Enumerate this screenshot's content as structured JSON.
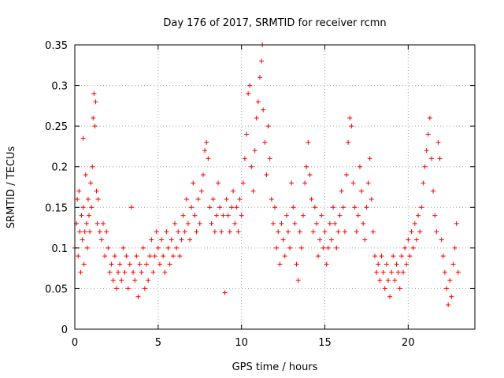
{
  "chart_data": {
    "type": "scatter",
    "title": "Day 176 of 2017, SRMTID for receiver rcmn",
    "xlabel": "GPS time / hours",
    "ylabel": "SRMTID / TECUs",
    "xlim": [
      0,
      24
    ],
    "ylim": [
      0,
      0.35
    ],
    "x_ticks": [
      0,
      5,
      10,
      15,
      20
    ],
    "x_tick_labels": [
      "0",
      "5",
      "10",
      "15",
      "20"
    ],
    "y_ticks": [
      0,
      0.05,
      0.1,
      0.15,
      0.2,
      0.25,
      0.3,
      0.35
    ],
    "y_tick_labels": [
      "0",
      "0.05",
      "0.1",
      "0.15",
      "0.2",
      "0.25",
      "0.3",
      "0.35"
    ],
    "grid": true,
    "marker": "+",
    "color": "#ff0000",
    "series": [
      {
        "name": "SRMTID",
        "points": [
          [
            0.0,
            0.1
          ],
          [
            0.1,
            0.13
          ],
          [
            0.15,
            0.16
          ],
          [
            0.2,
            0.09
          ],
          [
            0.25,
            0.17
          ],
          [
            0.3,
            0.12
          ],
          [
            0.35,
            0.07
          ],
          [
            0.4,
            0.14
          ],
          [
            0.45,
            0.11
          ],
          [
            0.5,
            0.15
          ],
          [
            0.5,
            0.235
          ],
          [
            0.55,
            0.08
          ],
          [
            0.6,
            0.12
          ],
          [
            0.65,
            0.19
          ],
          [
            0.7,
            0.13
          ],
          [
            0.75,
            0.1
          ],
          [
            0.8,
            0.16
          ],
          [
            0.85,
            0.14
          ],
          [
            0.9,
            0.12
          ],
          [
            0.95,
            0.18
          ],
          [
            1.0,
            0.15
          ],
          [
            1.05,
            0.2
          ],
          [
            1.1,
            0.26
          ],
          [
            1.15,
            0.29
          ],
          [
            1.2,
            0.25
          ],
          [
            1.25,
            0.28
          ],
          [
            1.3,
            0.17
          ],
          [
            1.35,
            0.13
          ],
          [
            1.4,
            0.16
          ],
          [
            1.5,
            0.12
          ],
          [
            1.6,
            0.11
          ],
          [
            1.7,
            0.13
          ],
          [
            1.8,
            0.09
          ],
          [
            1.9,
            0.12
          ],
          [
            2.0,
            0.1
          ],
          [
            2.1,
            0.07
          ],
          [
            2.2,
            0.08
          ],
          [
            2.3,
            0.06
          ],
          [
            2.4,
            0.09
          ],
          [
            2.5,
            0.05
          ],
          [
            2.6,
            0.07
          ],
          [
            2.7,
            0.08
          ],
          [
            2.8,
            0.06
          ],
          [
            2.9,
            0.1
          ],
          [
            3.0,
            0.07
          ],
          [
            3.1,
            0.09
          ],
          [
            3.2,
            0.05
          ],
          [
            3.3,
            0.08
          ],
          [
            3.4,
            0.15
          ],
          [
            3.5,
            0.07
          ],
          [
            3.6,
            0.06
          ],
          [
            3.7,
            0.09
          ],
          [
            3.8,
            0.04
          ],
          [
            3.9,
            0.08
          ],
          [
            4.0,
            0.07
          ],
          [
            4.1,
            0.1
          ],
          [
            4.2,
            0.05
          ],
          [
            4.3,
            0.08
          ],
          [
            4.4,
            0.06
          ],
          [
            4.5,
            0.09
          ],
          [
            4.6,
            0.11
          ],
          [
            4.7,
            0.07
          ],
          [
            4.8,
            0.09
          ],
          [
            4.9,
            0.12
          ],
          [
            5.0,
            0.1
          ],
          [
            5.1,
            0.08
          ],
          [
            5.2,
            0.11
          ],
          [
            5.3,
            0.09
          ],
          [
            5.4,
            0.07
          ],
          [
            5.5,
            0.12
          ],
          [
            5.6,
            0.1
          ],
          [
            5.7,
            0.08
          ],
          [
            5.8,
            0.11
          ],
          [
            5.9,
            0.09
          ],
          [
            6.0,
            0.13
          ],
          [
            6.1,
            0.1
          ],
          [
            6.2,
            0.12
          ],
          [
            6.3,
            0.09
          ],
          [
            6.4,
            0.11
          ],
          [
            6.5,
            0.14
          ],
          [
            6.6,
            0.12
          ],
          [
            6.7,
            0.16
          ],
          [
            6.8,
            0.13
          ],
          [
            6.9,
            0.11
          ],
          [
            7.0,
            0.15
          ],
          [
            7.1,
            0.18
          ],
          [
            7.2,
            0.14
          ],
          [
            7.3,
            0.12
          ],
          [
            7.4,
            0.16
          ],
          [
            7.5,
            0.13
          ],
          [
            7.6,
            0.17
          ],
          [
            7.7,
            0.19
          ],
          [
            7.8,
            0.22
          ],
          [
            7.9,
            0.23
          ],
          [
            8.0,
            0.21
          ],
          [
            8.1,
            0.15
          ],
          [
            8.2,
            0.13
          ],
          [
            8.3,
            0.16
          ],
          [
            8.4,
            0.12
          ],
          [
            8.5,
            0.14
          ],
          [
            8.6,
            0.18
          ],
          [
            8.7,
            0.15
          ],
          [
            8.8,
            0.12
          ],
          [
            8.9,
            0.14
          ],
          [
            9.0,
            0.045
          ],
          [
            9.1,
            0.16
          ],
          [
            9.2,
            0.14
          ],
          [
            9.3,
            0.12
          ],
          [
            9.4,
            0.15
          ],
          [
            9.5,
            0.17
          ],
          [
            9.6,
            0.13
          ],
          [
            9.7,
            0.15
          ],
          [
            9.8,
            0.12
          ],
          [
            9.9,
            0.16
          ],
          [
            10.0,
            0.14
          ],
          [
            10.1,
            0.18
          ],
          [
            10.2,
            0.21
          ],
          [
            10.3,
            0.24
          ],
          [
            10.4,
            0.29
          ],
          [
            10.5,
            0.3
          ],
          [
            10.6,
            0.2
          ],
          [
            10.7,
            0.17
          ],
          [
            10.8,
            0.22
          ],
          [
            10.9,
            0.26
          ],
          [
            11.0,
            0.28
          ],
          [
            11.1,
            0.31
          ],
          [
            11.2,
            0.33
          ],
          [
            11.25,
            0.35
          ],
          [
            11.3,
            0.27
          ],
          [
            11.4,
            0.23
          ],
          [
            11.5,
            0.19
          ],
          [
            11.6,
            0.25
          ],
          [
            11.7,
            0.21
          ],
          [
            11.8,
            0.16
          ],
          [
            11.9,
            0.13
          ],
          [
            12.0,
            0.15
          ],
          [
            12.1,
            0.1
          ],
          [
            12.2,
            0.12
          ],
          [
            12.3,
            0.08
          ],
          [
            12.4,
            0.13
          ],
          [
            12.5,
            0.11
          ],
          [
            12.6,
            0.09
          ],
          [
            12.7,
            0.14
          ],
          [
            12.8,
            0.12
          ],
          [
            12.9,
            0.1
          ],
          [
            13.0,
            0.18
          ],
          [
            13.1,
            0.15
          ],
          [
            13.2,
            0.13
          ],
          [
            13.3,
            0.08
          ],
          [
            13.4,
            0.06
          ],
          [
            13.5,
            0.12
          ],
          [
            13.6,
            0.1
          ],
          [
            13.7,
            0.14
          ],
          [
            13.8,
            0.18
          ],
          [
            13.9,
            0.2
          ],
          [
            14.0,
            0.23
          ],
          [
            14.1,
            0.19
          ],
          [
            14.2,
            0.16
          ],
          [
            14.3,
            0.12
          ],
          [
            14.4,
            0.15
          ],
          [
            14.5,
            0.13
          ],
          [
            14.6,
            0.09
          ],
          [
            14.7,
            0.11
          ],
          [
            14.8,
            0.14
          ],
          [
            14.9,
            0.1
          ],
          [
            15.0,
            0.12
          ],
          [
            15.1,
            0.08
          ],
          [
            15.2,
            0.1
          ],
          [
            15.3,
            0.13
          ],
          [
            15.4,
            0.11
          ],
          [
            15.5,
            0.15
          ],
          [
            15.6,
            0.13
          ],
          [
            15.7,
            0.1
          ],
          [
            15.8,
            0.12
          ],
          [
            15.9,
            0.14
          ],
          [
            16.0,
            0.17
          ],
          [
            16.1,
            0.15
          ],
          [
            16.2,
            0.12
          ],
          [
            16.3,
            0.19
          ],
          [
            16.4,
            0.23
          ],
          [
            16.5,
            0.26
          ],
          [
            16.6,
            0.25
          ],
          [
            16.7,
            0.18
          ],
          [
            16.8,
            0.15
          ],
          [
            16.9,
            0.12
          ],
          [
            17.0,
            0.14
          ],
          [
            17.1,
            0.2
          ],
          [
            17.2,
            0.17
          ],
          [
            17.3,
            0.13
          ],
          [
            17.4,
            0.11
          ],
          [
            17.5,
            0.15
          ],
          [
            17.6,
            0.18
          ],
          [
            17.7,
            0.21
          ],
          [
            17.8,
            0.16
          ],
          [
            17.9,
            0.12
          ],
          [
            18.0,
            0.09
          ],
          [
            18.1,
            0.07
          ],
          [
            18.2,
            0.08
          ],
          [
            18.3,
            0.06
          ],
          [
            18.4,
            0.09
          ],
          [
            18.5,
            0.07
          ],
          [
            18.6,
            0.05
          ],
          [
            18.7,
            0.08
          ],
          [
            18.8,
            0.06
          ],
          [
            18.9,
            0.04
          ],
          [
            19.0,
            0.07
          ],
          [
            19.1,
            0.09
          ],
          [
            19.2,
            0.06
          ],
          [
            19.3,
            0.08
          ],
          [
            19.4,
            0.07
          ],
          [
            19.5,
            0.05
          ],
          [
            19.6,
            0.09
          ],
          [
            19.7,
            0.07
          ],
          [
            19.8,
            0.1
          ],
          [
            19.9,
            0.08
          ],
          [
            20.0,
            0.11
          ],
          [
            20.1,
            0.09
          ],
          [
            20.2,
            0.12
          ],
          [
            20.3,
            0.1
          ],
          [
            20.4,
            0.13
          ],
          [
            20.5,
            0.11
          ],
          [
            20.6,
            0.14
          ],
          [
            20.7,
            0.12
          ],
          [
            20.8,
            0.15
          ],
          [
            20.9,
            0.18
          ],
          [
            21.0,
            0.2
          ],
          [
            21.1,
            0.22
          ],
          [
            21.2,
            0.24
          ],
          [
            21.3,
            0.26
          ],
          [
            21.4,
            0.21
          ],
          [
            21.5,
            0.17
          ],
          [
            21.6,
            0.14
          ],
          [
            21.7,
            0.12
          ],
          [
            21.8,
            0.23
          ],
          [
            21.9,
            0.21
          ],
          [
            22.0,
            0.11
          ],
          [
            22.1,
            0.09
          ],
          [
            22.2,
            0.07
          ],
          [
            22.3,
            0.05
          ],
          [
            22.4,
            0.03
          ],
          [
            22.5,
            0.06
          ],
          [
            22.6,
            0.04
          ],
          [
            22.7,
            0.08
          ],
          [
            22.8,
            0.1
          ],
          [
            22.9,
            0.13
          ],
          [
            23.0,
            0.07
          ]
        ]
      }
    ]
  }
}
